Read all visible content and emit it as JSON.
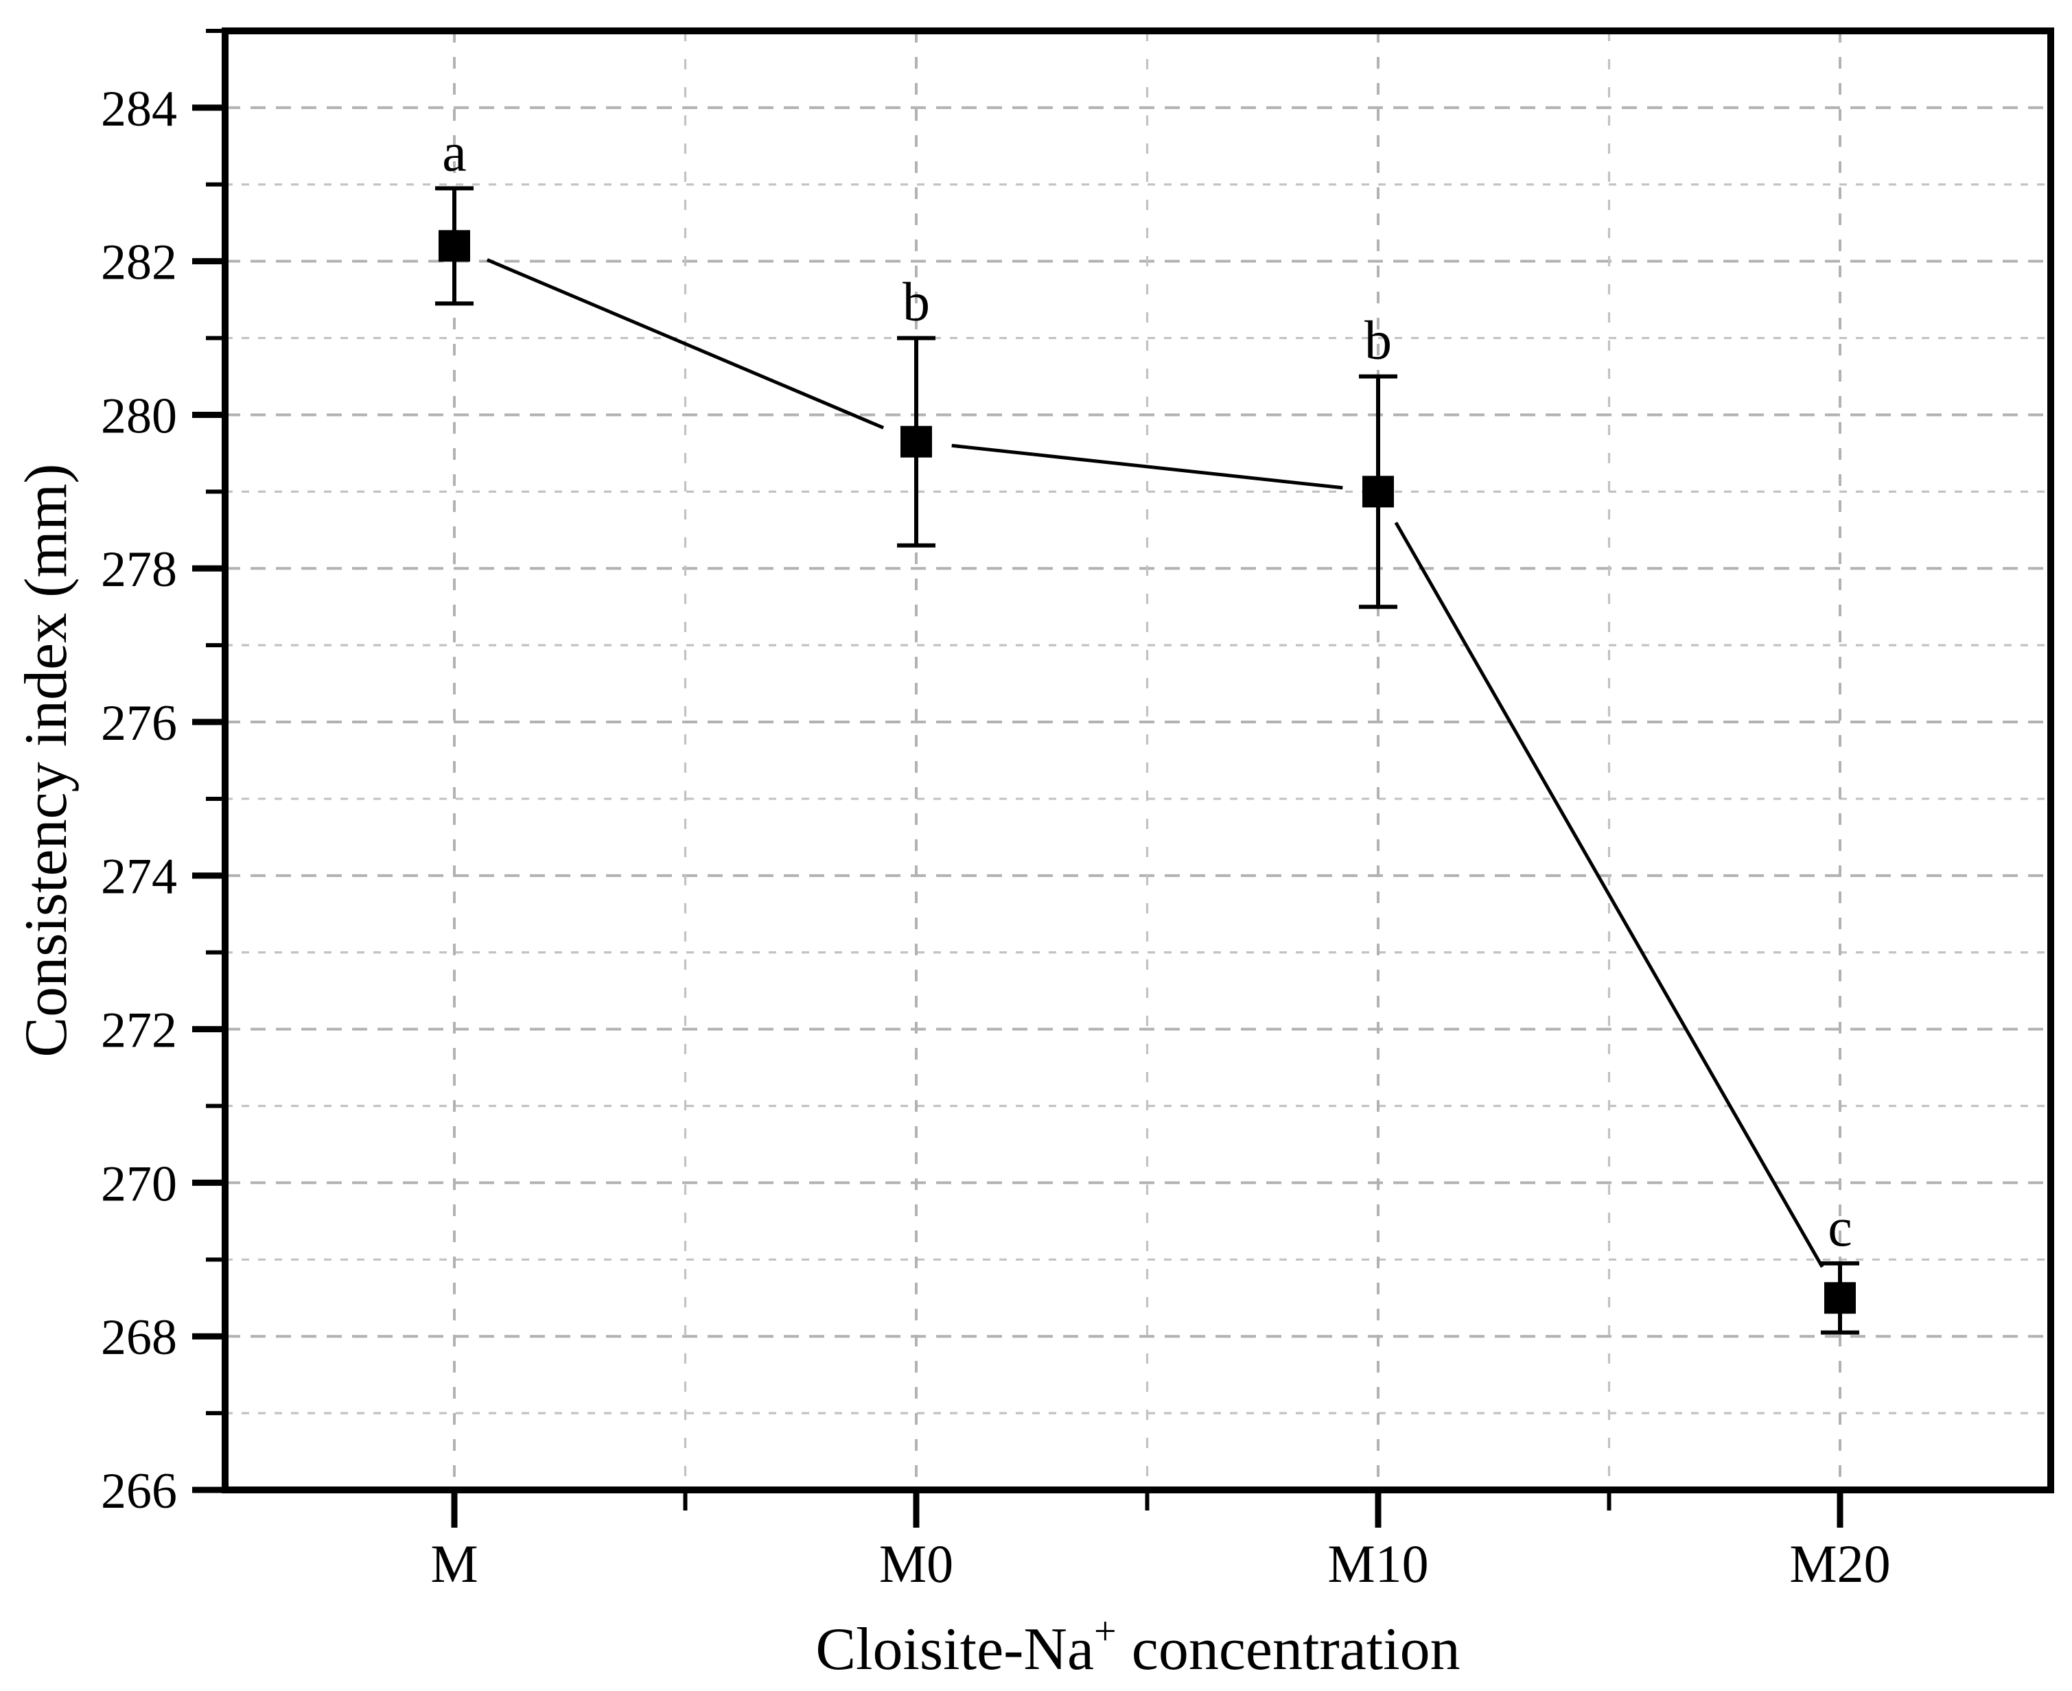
{
  "chart_data": {
    "type": "line",
    "title": "",
    "xlabel": "Cloisite-Na+ concentration",
    "xlabel_parts": {
      "prefix": "Cloisite-Na",
      "superscript": "+",
      "suffix": " concentration"
    },
    "ylabel": "Consistency index (mm)",
    "categories": [
      "M",
      "M0",
      "M10",
      "M20"
    ],
    "series": [
      {
        "name": "Consistency index",
        "values": [
          282.2,
          279.65,
          279.0,
          268.5
        ],
        "error_plus": [
          0.75,
          1.35,
          1.5,
          0.45
        ],
        "error_minus": [
          0.75,
          1.35,
          1.5,
          0.45
        ],
        "point_labels": [
          "a",
          "b",
          "b",
          "c"
        ],
        "marker": "filled-square",
        "color": "#000000"
      }
    ],
    "ylim": [
      266,
      285
    ],
    "y_major_step": 2,
    "y_minor_step": 1,
    "y_major_ticks": [
      266,
      268,
      270,
      272,
      274,
      276,
      278,
      280,
      282,
      284
    ],
    "grid": "dashed-both-major-and-minor",
    "legend": "none",
    "colors": {
      "axis": "#000000",
      "line": "#000000",
      "marker": "#000000",
      "major_grid": "#b2b2b2",
      "minor_grid": "#c2c2c2",
      "background": "#ffffff"
    }
  }
}
